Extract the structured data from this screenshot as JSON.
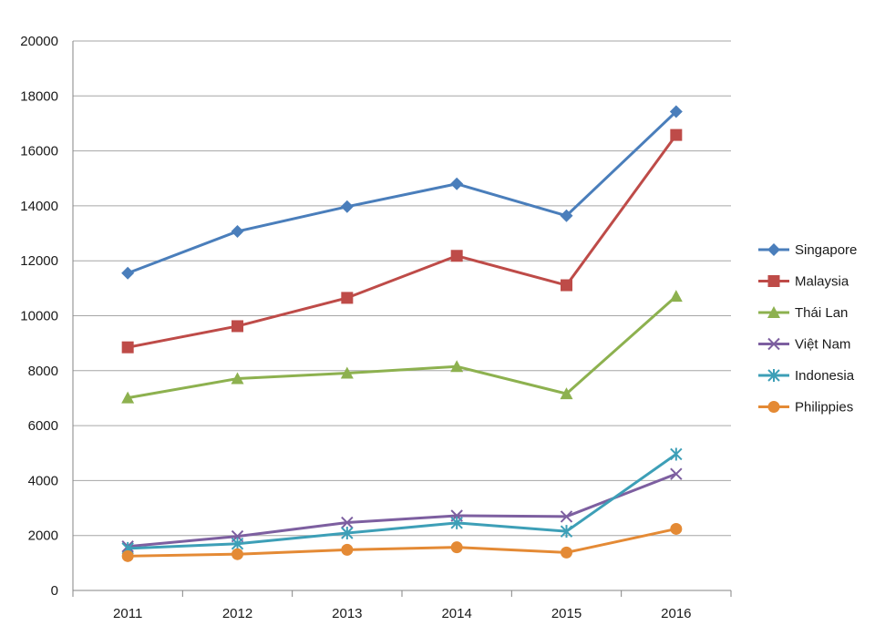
{
  "chart_data": {
    "type": "line",
    "title": "",
    "xlabel": "",
    "ylabel": "",
    "categories": [
      "2011",
      "2012",
      "2013",
      "2014",
      "2015",
      "2016"
    ],
    "ylim": [
      0,
      20000
    ],
    "yticks": [
      0,
      2000,
      4000,
      6000,
      8000,
      10000,
      12000,
      14000,
      16000,
      18000,
      20000
    ],
    "grid": true,
    "legend_position": "right",
    "series": [
      {
        "name": "Singapore",
        "color": "#4a7ebb",
        "marker": "diamond",
        "values": [
          11550,
          13070,
          13970,
          14800,
          13640,
          17430
        ]
      },
      {
        "name": "Malaysia",
        "color": "#be4b48",
        "marker": "square",
        "values": [
          8850,
          9620,
          10650,
          12180,
          11110,
          16580
        ]
      },
      {
        "name": "Thái Lan",
        "color": "#8db14f",
        "marker": "triangle",
        "values": [
          7010,
          7710,
          7910,
          8150,
          7160,
          10710
        ]
      },
      {
        "name": "Việt Nam",
        "color": "#7d5fa0",
        "marker": "x",
        "values": [
          1600,
          1970,
          2470,
          2720,
          2690,
          4240
        ]
      },
      {
        "name": "Indonesia",
        "color": "#3d9fb7",
        "marker": "asterisk",
        "values": [
          1530,
          1700,
          2090,
          2460,
          2150,
          4960
        ]
      },
      {
        "name": "Philippies",
        "color": "#e48a35",
        "marker": "circle",
        "values": [
          1250,
          1320,
          1480,
          1570,
          1380,
          2240
        ]
      }
    ]
  }
}
